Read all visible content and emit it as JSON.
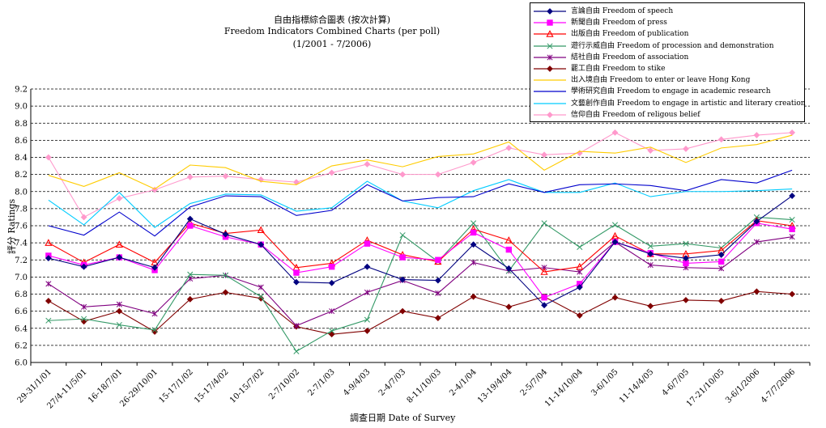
{
  "chart_data": {
    "type": "line",
    "title": "自由指標綜合圖表 (按次計算)",
    "subtitle": "Freedom Indicators Combined Charts (per poll)",
    "date_range": "(1/2001 - 7/2006)",
    "xlabel": "調查日期 Date of Survey",
    "ylabel": "評分 Ratings",
    "ylim": [
      6.0,
      9.2
    ],
    "yticks": [
      "6.0",
      "6.2",
      "6.4",
      "6.6",
      "6.8",
      "7.0",
      "7.2",
      "7.4",
      "7.6",
      "7.8",
      "8.0",
      "8.2",
      "8.4",
      "8.6",
      "8.8",
      "9.0",
      "9.2"
    ],
    "grid": "horizontal dashed",
    "legend_position": "top-right",
    "categories": [
      "29-31/1/01",
      "27/4-11/5/01",
      "16-18/7/01",
      "26-29/10/01",
      "15-17/1/02",
      "15-17/4/02",
      "10-15/7/02",
      "2-7/10/02",
      "2-7/1/03",
      "4-9/4/03",
      "2-4/7/03",
      "8-11/10/03",
      "2-4/1/04",
      "13-19/4/04",
      "2-5/7/04",
      "11-14/10/04",
      "3-6/1/05",
      "11-14/4/05",
      "4-6/7/05",
      "17-21/10/05",
      "3-6/1/2006",
      "4-7/7/2006"
    ],
    "x_label_positions": [
      0,
      1,
      2,
      3,
      4,
      5,
      6,
      7,
      8,
      9,
      10,
      11,
      12,
      13,
      14,
      15,
      16,
      17,
      18,
      19,
      20,
      21
    ],
    "series": [
      {
        "name": "言論自由 Freedom of speech",
        "color": "#000080",
        "marker": "diamond",
        "values": [
          7.22,
          7.12,
          7.23,
          7.11,
          7.68,
          7.5,
          7.38,
          6.94,
          6.93,
          7.12,
          6.97,
          6.96,
          7.38,
          7.1,
          6.67,
          6.88,
          7.41,
          7.27,
          7.22,
          7.26,
          7.65,
          7.95
        ]
      },
      {
        "name": "新聞自由 Freedom of press",
        "color": "#ff00ff",
        "marker": "square",
        "values": [
          7.25,
          7.14,
          7.23,
          7.08,
          7.6,
          7.47,
          7.38,
          7.05,
          7.12,
          7.39,
          7.23,
          7.2,
          7.52,
          7.32,
          6.76,
          6.92,
          7.41,
          7.28,
          7.16,
          7.18,
          7.63,
          7.56
        ]
      },
      {
        "name": "出版自由 Freedom of publication",
        "color": "#ff0000",
        "marker": "triangle",
        "values": [
          7.4,
          7.17,
          7.38,
          7.17,
          7.63,
          7.51,
          7.55,
          7.11,
          7.16,
          7.43,
          7.26,
          7.18,
          7.56,
          7.43,
          7.06,
          7.12,
          7.48,
          7.27,
          7.27,
          7.31,
          7.66,
          7.6
        ]
      },
      {
        "name": "遊行示威自由 Freedom of procession and demonstration",
        "color": "#339966",
        "marker": "x",
        "values": [
          6.49,
          6.51,
          6.44,
          6.38,
          7.03,
          7.02,
          6.77,
          6.13,
          6.37,
          6.5,
          7.49,
          7.18,
          7.63,
          7.07,
          7.63,
          7.35,
          7.61,
          7.36,
          7.39,
          7.34,
          7.7,
          7.67
        ]
      },
      {
        "name": "結社自由 Freedom of association",
        "color": "#800080",
        "marker": "star",
        "values": [
          6.92,
          6.65,
          6.68,
          6.57,
          6.98,
          7.02,
          6.88,
          6.43,
          6.6,
          6.82,
          6.96,
          6.81,
          7.17,
          7.07,
          7.11,
          7.06,
          7.41,
          7.14,
          7.11,
          7.1,
          7.41,
          7.47
        ]
      },
      {
        "name": "罷工自由 Freedom to stike",
        "color": "#800000",
        "marker": "diamond",
        "values": [
          6.72,
          6.48,
          6.6,
          6.36,
          6.74,
          6.82,
          6.75,
          6.42,
          6.33,
          6.37,
          6.6,
          6.52,
          6.77,
          6.65,
          6.77,
          6.55,
          6.76,
          6.66,
          6.73,
          6.72,
          6.83,
          6.8
        ]
      },
      {
        "name": "出入境自由 Freedom to enter or leave Hong Kong",
        "color": "#ffcc00",
        "marker": "none",
        "values": [
          8.19,
          8.06,
          8.22,
          8.03,
          8.31,
          8.28,
          8.12,
          8.08,
          8.3,
          8.37,
          8.29,
          8.41,
          8.44,
          8.58,
          8.25,
          8.47,
          8.45,
          8.52,
          8.34,
          8.51,
          8.55,
          8.66
        ]
      },
      {
        "name": "學術研究自由 Freedom to engage in academic research",
        "color": "#0000cc",
        "marker": "none",
        "values": [
          7.6,
          7.49,
          7.76,
          7.48,
          7.82,
          7.95,
          7.94,
          7.72,
          7.78,
          8.08,
          7.89,
          7.93,
          7.94,
          8.09,
          7.99,
          8.08,
          8.09,
          8.07,
          8.01,
          8.14,
          8.1,
          8.25
        ]
      },
      {
        "name": "文藝創作自由 Freedom to engage in artistic and literary creation",
        "color": "#00ccff",
        "marker": "none",
        "values": [
          7.9,
          7.61,
          7.99,
          7.58,
          7.86,
          7.97,
          7.96,
          7.77,
          7.81,
          8.12,
          7.89,
          7.81,
          8.01,
          8.14,
          7.99,
          7.99,
          8.1,
          7.94,
          8.0,
          8.0,
          8.01,
          8.03
        ]
      },
      {
        "name": "信仰自由 Freedom of religous belief",
        "color": "#ff99cc",
        "marker": "diamond",
        "values": [
          8.4,
          7.7,
          7.92,
          8.02,
          8.17,
          8.18,
          8.14,
          8.11,
          8.22,
          8.32,
          8.2,
          8.2,
          8.34,
          8.51,
          8.43,
          8.45,
          8.69,
          8.48,
          8.5,
          8.61,
          8.66,
          8.69
        ]
      }
    ]
  }
}
